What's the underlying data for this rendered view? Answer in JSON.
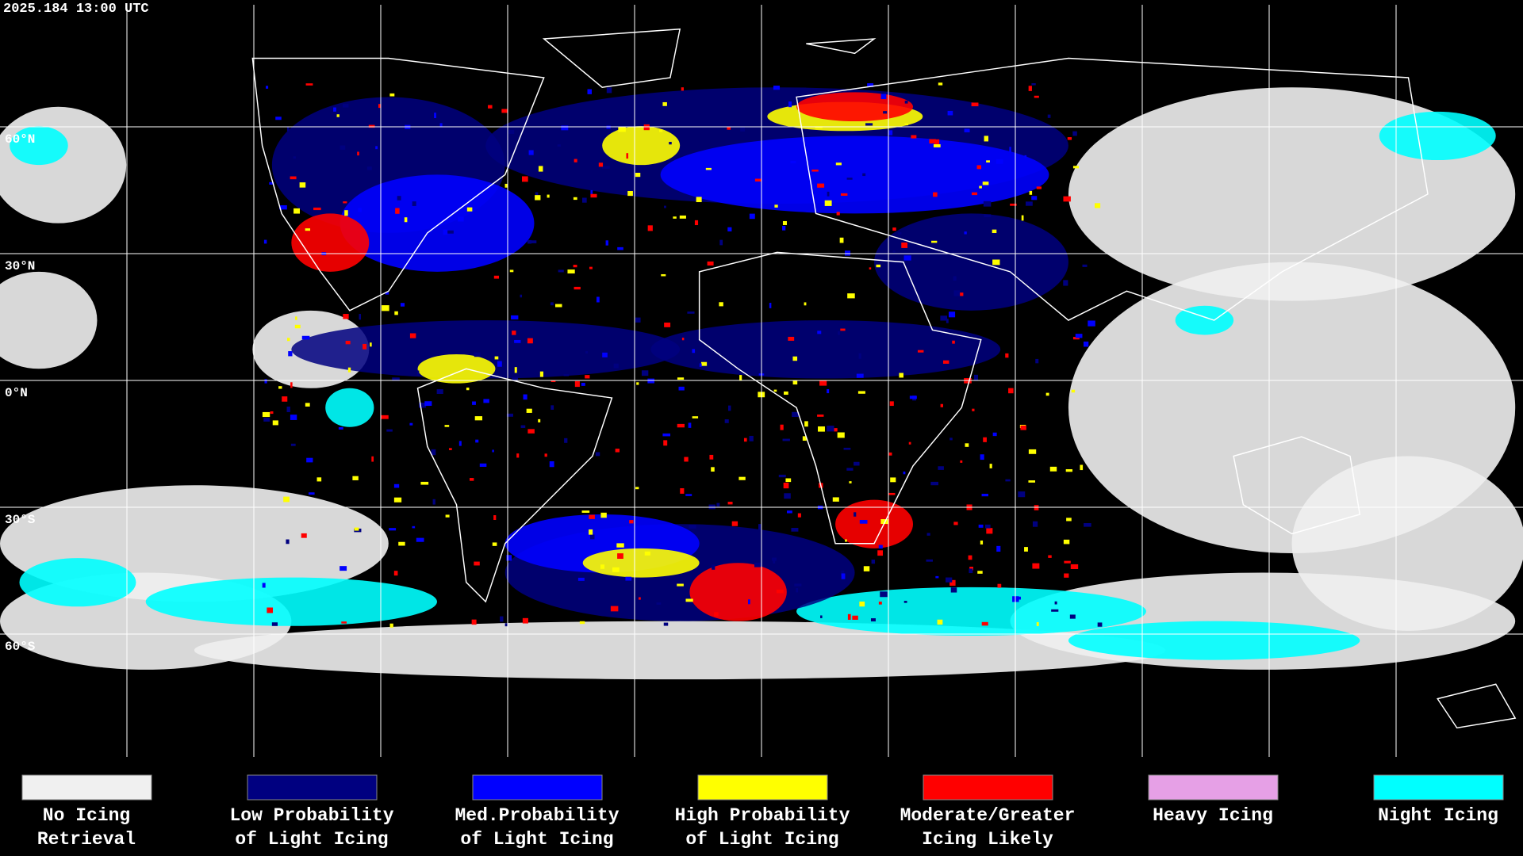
{
  "header": {
    "timestamp": "2025.184 13:00 UTC"
  },
  "map": {
    "latitude_labels": [
      "60°N",
      "30°N",
      "0°N",
      "30°S",
      "60°S"
    ]
  },
  "legend": {
    "items": [
      {
        "label": [
          "No Icing",
          "Retrieval"
        ],
        "color": "#f0f0f0"
      },
      {
        "label": [
          "Low Probability",
          "of Light Icing"
        ],
        "color": "#000080"
      },
      {
        "label": [
          "Med.Probability",
          "of Light Icing"
        ],
        "color": "#0000ff"
      },
      {
        "label": [
          "High Probability",
          "of Light Icing"
        ],
        "color": "#ffff00"
      },
      {
        "label": [
          "Moderate/Greater",
          "Icing Likely"
        ],
        "color": "#ff0000"
      },
      {
        "label": [
          "Heavy Icing"
        ],
        "color": "#e6a0e6"
      },
      {
        "label": [
          "Night Icing"
        ],
        "color": "#00ffff"
      }
    ]
  }
}
